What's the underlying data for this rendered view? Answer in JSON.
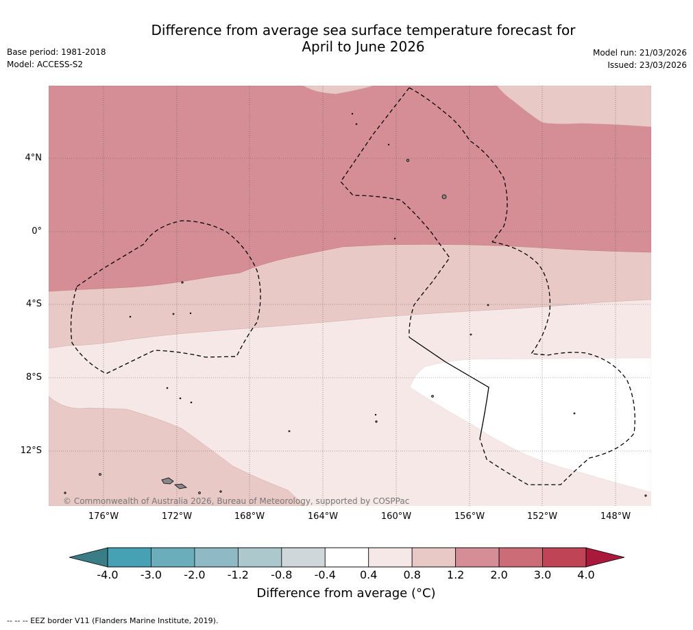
{
  "header": {
    "title_line1": "Difference from average sea surface temperature forecast for",
    "title_line2": "April to June 2026",
    "base_period": "Base period: 1981-2018",
    "model": "Model: ACCESS-S2",
    "model_run": "Model run: 21/03/2026",
    "issued": "Issued: 23/03/2026"
  },
  "map": {
    "lat_ticks": [
      "4°N",
      "0°",
      "4°S",
      "8°S",
      "12°S"
    ],
    "lon_ticks": [
      "176°W",
      "172°W",
      "168°W",
      "164°W",
      "160°W",
      "156°W",
      "152°W",
      "148°W"
    ],
    "copyright": "© Commonwealth of Australia 2026, Bureau of Meteorology, supported by COSPPac",
    "category_colors": {
      "c_0_4_0_8": "#f5e8e7",
      "c_0_8_1_2": "#e8c9c5",
      "c_1_2_2_0": "#d58e96",
      "c_neutral": "#ffffff"
    }
  },
  "colorbar": {
    "labels": [
      "-4.0",
      "-3.0",
      "-2.0",
      "-1.2",
      "-0.8",
      "-0.4",
      "0.4",
      "0.8",
      "1.2",
      "2.0",
      "3.0",
      "4.0"
    ],
    "colors": [
      "#45a1b3",
      "#6cadbb",
      "#8fbac5",
      "#acc8cd",
      "#d0d7da",
      "#ffffff",
      "#f5e8e7",
      "#e8c9c5",
      "#d58e96",
      "#cb6c76",
      "#bf4556"
    ],
    "under_color": "#3a7d86",
    "over_color": "#a8193b",
    "title": "Difference from average (°C)"
  },
  "footnote": "--  --  -- EEZ border V11 (Flanders Marine Institute, 2019)."
}
